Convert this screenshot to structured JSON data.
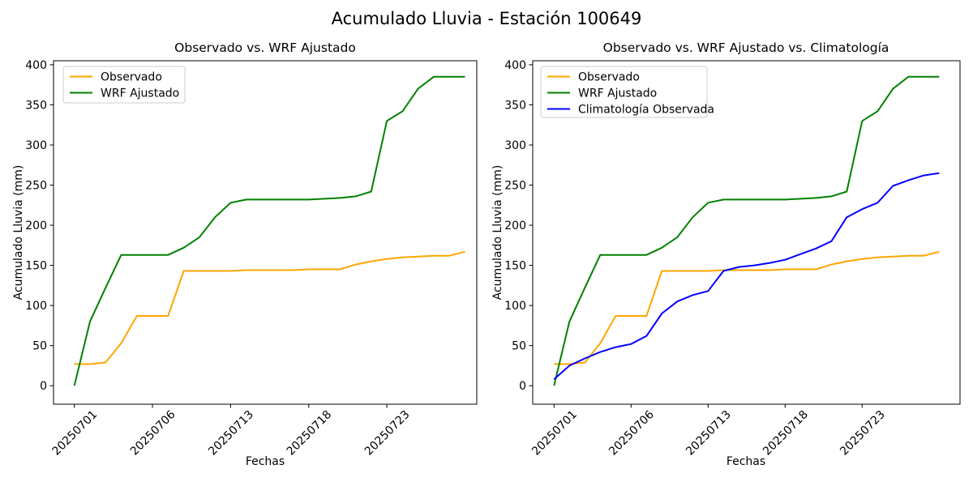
{
  "figure": {
    "title": "Acumulado Lluvia - Estación 100649",
    "background": "#ffffff",
    "text_color": "#000000",
    "spine_color": "#000000"
  },
  "chart_data": [
    {
      "type": "line",
      "title": "Observado vs. WRF Ajustado",
      "xlabel": "Fechas",
      "ylabel": "Acumulado Lluvia (mm)",
      "ylim": [
        -19,
        404
      ],
      "grid": false,
      "legend_position": "upper left",
      "y_ticks": [
        0,
        50,
        100,
        150,
        200,
        250,
        300,
        350,
        400
      ],
      "x_tick_labels": [
        "20250701",
        "20250706",
        "20250713",
        "20250718",
        "20250723"
      ],
      "x_tick_positions": [
        0,
        5,
        10,
        15,
        20
      ],
      "n_points": 26,
      "series": [
        {
          "name": "Observado",
          "color": "#FFA500",
          "values": [
            27,
            27,
            29,
            53,
            87,
            87,
            87,
            143,
            143,
            143,
            143,
            144,
            144,
            144,
            144,
            145,
            145,
            145,
            151,
            155,
            158,
            160,
            161,
            162,
            162,
            167
          ]
        },
        {
          "name": "WRF Ajustado",
          "color": "#008000",
          "values": [
            0,
            80,
            122,
            163,
            163,
            163,
            163,
            172,
            185,
            210,
            228,
            232,
            232,
            232,
            232,
            232,
            233,
            234,
            236,
            242,
            330,
            342,
            370,
            385,
            385,
            385
          ]
        }
      ]
    },
    {
      "type": "line",
      "title": "Observado vs. WRF Ajustado vs. Climatología",
      "xlabel": "Fechas",
      "ylabel": "Acumulado Lluvia (mm)",
      "ylim": [
        -19,
        404
      ],
      "grid": false,
      "legend_position": "upper left",
      "y_ticks": [
        0,
        50,
        100,
        150,
        200,
        250,
        300,
        350,
        400
      ],
      "x_tick_labels": [
        "20250701",
        "20250706",
        "20250713",
        "20250718",
        "20250723"
      ],
      "x_tick_positions": [
        0,
        5,
        10,
        15,
        20
      ],
      "n_points": 26,
      "series": [
        {
          "name": "Observado",
          "color": "#FFA500",
          "values": [
            27,
            27,
            29,
            53,
            87,
            87,
            87,
            143,
            143,
            143,
            143,
            144,
            144,
            144,
            144,
            145,
            145,
            145,
            151,
            155,
            158,
            160,
            161,
            162,
            162,
            167
          ]
        },
        {
          "name": "WRF Ajustado",
          "color": "#008000",
          "values": [
            0,
            80,
            122,
            163,
            163,
            163,
            163,
            172,
            185,
            210,
            228,
            232,
            232,
            232,
            232,
            232,
            233,
            234,
            236,
            242,
            330,
            342,
            370,
            385,
            385,
            385
          ]
        },
        {
          "name": "Climatología Observada",
          "color": "#0000FF",
          "values": [
            8,
            25,
            34,
            42,
            48,
            52,
            62,
            90,
            105,
            113,
            118,
            143,
            148,
            150,
            153,
            157,
            164,
            171,
            180,
            210,
            220,
            228,
            249,
            256,
            262,
            265
          ]
        }
      ]
    }
  ]
}
